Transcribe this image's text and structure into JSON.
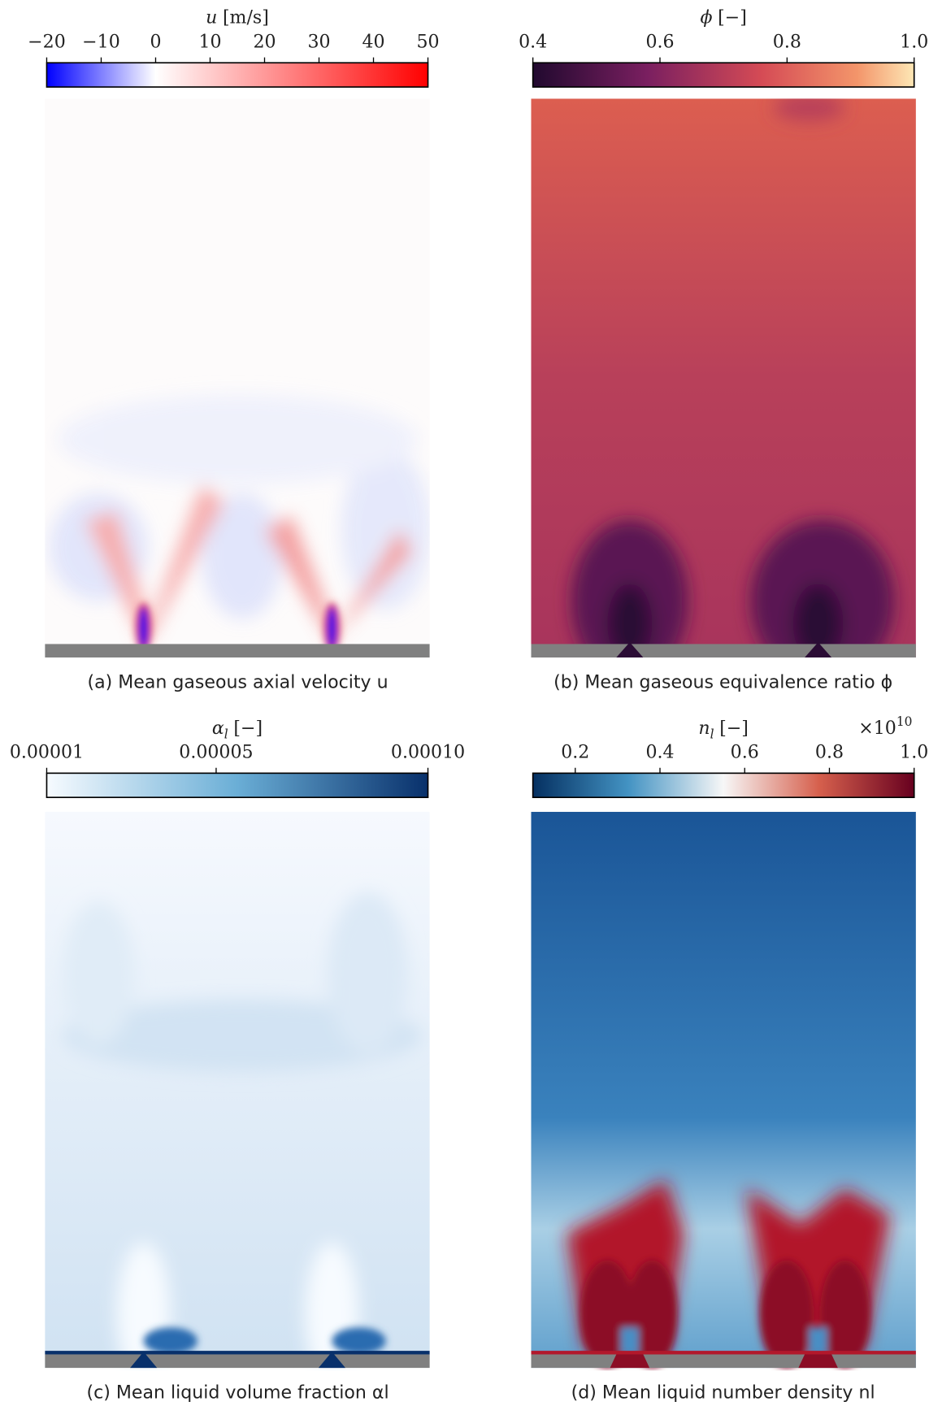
{
  "panels": [
    {
      "colorbar": {
        "symbol": "u",
        "unit": "[m/s]",
        "lim": [
          -20,
          50
        ],
        "ticks": [
          {
            "value": -20,
            "label": "−20"
          },
          {
            "value": -10,
            "label": "−10"
          },
          0,
          10,
          20,
          30,
          40,
          50
        ]
      },
      "caption": "(a) Mean gaseous axial velocity u"
    },
    {
      "colorbar": {
        "symbol": "ϕ",
        "unit": "[−]",
        "lim": [
          0.4,
          1.0
        ],
        "ticks": [
          0.4,
          0.6,
          0.8,
          {
            "value": 1.0,
            "label": "1.0"
          }
        ]
      },
      "caption": "(b) Mean gaseous equivalence ratio ϕ"
    },
    {
      "colorbar": {
        "symbol": "α",
        "subscript": "l",
        "unit": "[−]",
        "lim": [
          1e-05,
          0.0001
        ],
        "ticks": [
          1e-05,
          5e-05,
          {
            "value": 0.0001,
            "label": "0.00010"
          }
        ]
      },
      "caption": "(c) Mean liquid volume fraction αl"
    },
    {
      "colorbar": {
        "symbol": "n",
        "subscript": "l",
        "unit": "[−]",
        "lim": [
          0.1,
          1.0
        ],
        "ticks": [
          0.2,
          0.4,
          0.6,
          0.8,
          {
            "value": 1.0,
            "label": "1.0"
          }
        ],
        "multiplier": {
          "text": "×10",
          "exponent": 10
        }
      },
      "caption": "(d) Mean liquid number density nl"
    }
  ]
}
